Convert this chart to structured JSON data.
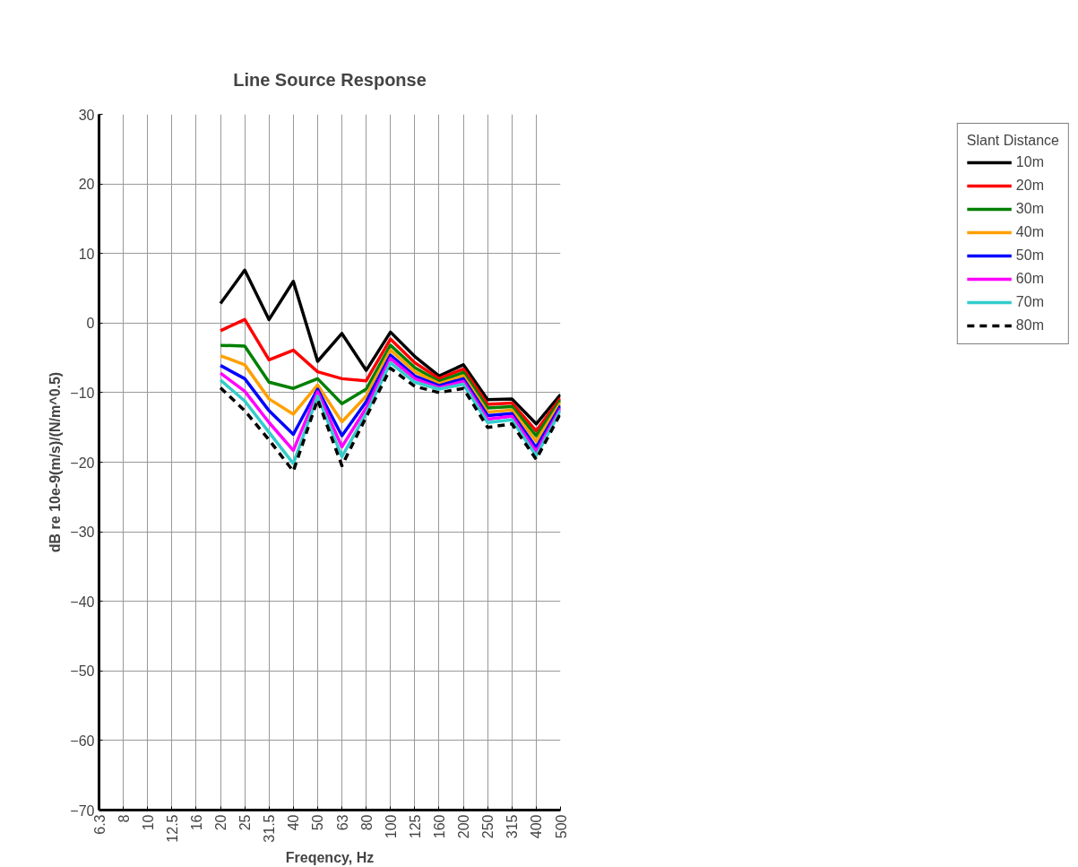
{
  "chart_data": {
    "type": "line",
    "title": "Line Source Response",
    "xlabel": "Freqency, Hz",
    "ylabel": "dB re 10e-9(m/s)/(N/m^0.5)",
    "legend_title": "Slant Distance",
    "categories": [
      "6.3",
      "8",
      "10",
      "12.5",
      "16",
      "20",
      "25",
      "31.5",
      "40",
      "50",
      "63",
      "80",
      "100",
      "125",
      "160",
      "200",
      "250",
      "315",
      "400",
      "500"
    ],
    "series": [
      {
        "name": "10m",
        "color": "#000000",
        "values": [
          null,
          null,
          null,
          null,
          null,
          2.8,
          7.6,
          0.5,
          6,
          -5.5,
          -1.5,
          -6.8,
          -1.3,
          -4.8,
          -7.6,
          -6,
          -11,
          -10.9,
          -14.5,
          -10.3
        ]
      },
      {
        "name": "20m",
        "color": "#ff0000",
        "values": [
          null,
          null,
          null,
          null,
          null,
          -1.1,
          0.5,
          -5.3,
          -3.9,
          -7,
          -8,
          -8.3,
          -2.3,
          -5.7,
          -8,
          -6.6,
          -11.7,
          -11.5,
          -15.5,
          -10.8
        ]
      },
      {
        "name": "30m",
        "color": "#008000",
        "values": [
          null,
          null,
          null,
          null,
          null,
          -3.2,
          -3.3,
          -8.5,
          -9.4,
          -8,
          -11.6,
          -9.5,
          -3.2,
          -6.4,
          -8.4,
          -7.1,
          -12.2,
          -12,
          -16.2,
          -11.1
        ]
      },
      {
        "name": "40m",
        "color": "#ffa000",
        "values": [
          null,
          null,
          null,
          null,
          null,
          -4.7,
          -6,
          -10.9,
          -13.1,
          -8.9,
          -14.2,
          -10.5,
          -3.9,
          -7,
          -8.7,
          -7.6,
          -12.8,
          -12.5,
          -17,
          -11.5
        ]
      },
      {
        "name": "50m",
        "color": "#0000ff",
        "values": [
          null,
          null,
          null,
          null,
          null,
          -6.1,
          -8,
          -12.6,
          -16,
          -9.5,
          -16.2,
          -11.3,
          -4.6,
          -7.6,
          -9,
          -8,
          -13.3,
          -13,
          -17.9,
          -11.9
        ]
      },
      {
        "name": "60m",
        "color": "#ff00ff",
        "values": [
          null,
          null,
          null,
          null,
          null,
          -7.2,
          -9.8,
          -14.3,
          -18.3,
          -9.9,
          -17.8,
          -12.2,
          -5.1,
          -8,
          -9.3,
          -8.4,
          -13.8,
          -13.4,
          -18.5,
          -12.3
        ]
      },
      {
        "name": "70m",
        "color": "#33cccc",
        "values": [
          null,
          null,
          null,
          null,
          null,
          -8.2,
          -11.2,
          -15.7,
          -20.2,
          -10.5,
          -19.2,
          -13,
          -5.7,
          -8.5,
          -9.5,
          -8.8,
          -14.3,
          -13.9,
          -19.1,
          -12.6
        ]
      },
      {
        "name": "80m",
        "color": "#000000",
        "line_style": "dashed",
        "values": [
          null,
          null,
          null,
          null,
          null,
          -9.3,
          -12.6,
          -16.8,
          -21.3,
          -11,
          -20.5,
          -13.5,
          -6.5,
          -9.1,
          -10,
          -9.4,
          -15,
          -14.5,
          -19.6,
          -13
        ]
      }
    ],
    "ylim": [
      -70,
      30
    ],
    "yticks": [
      -70,
      -60,
      -50,
      -40,
      -30,
      -20,
      -10,
      0,
      10,
      20,
      30
    ],
    "grid": true,
    "legend": "right",
    "marker": "none",
    "line_style": "solid"
  }
}
